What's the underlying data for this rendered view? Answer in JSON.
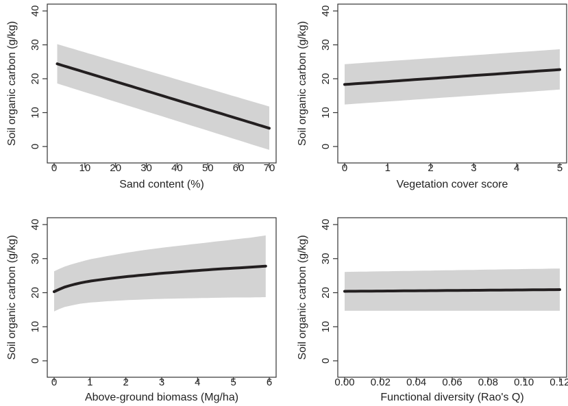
{
  "colors": {
    "band": "#d3d3d3",
    "line": "#231f20",
    "axis": "#333333"
  },
  "chart_data": [
    {
      "type": "line",
      "xlabel": "Sand content (%)",
      "ylabel": "Soil organic carbon (g/kg)",
      "xlim": [
        0,
        70
      ],
      "ylim": [
        0,
        40
      ],
      "xticks": [
        "0",
        "10",
        "20",
        "30",
        "40",
        "50",
        "60",
        "70"
      ],
      "yticks": [
        "0",
        "10",
        "20",
        "30",
        "40"
      ],
      "series": [
        {
          "x": [
            1,
            70
          ],
          "y": [
            24.4,
            5.4
          ],
          "lower": [
            18.6,
            -1.0
          ],
          "upper": [
            30.2,
            11.8
          ]
        }
      ]
    },
    {
      "type": "line",
      "xlabel": "Vegetation cover score",
      "ylabel": "Soil organic carbon (g/kg)",
      "xlim": [
        0,
        5
      ],
      "ylim": [
        0,
        40
      ],
      "xticks": [
        "0",
        "1",
        "2",
        "3",
        "4",
        "5"
      ],
      "yticks": [
        "0",
        "10",
        "20",
        "30",
        "40"
      ],
      "series": [
        {
          "x": [
            0,
            5
          ],
          "y": [
            18.3,
            22.7
          ],
          "lower": [
            12.4,
            16.8
          ],
          "upper": [
            24.3,
            28.7
          ]
        }
      ]
    },
    {
      "type": "line",
      "xlabel": "Above-ground biomass (Mg/ha)",
      "ylabel": "Soil organic carbon (g/kg)",
      "xlim": [
        0,
        6
      ],
      "ylim": [
        0,
        40
      ],
      "xticks": [
        "0",
        "1",
        "2",
        "3",
        "4",
        "5",
        "6"
      ],
      "yticks": [
        "0",
        "10",
        "20",
        "30",
        "40"
      ],
      "series": [
        {
          "x": [
            0,
            0.25,
            0.5,
            0.75,
            1,
            1.5,
            2,
            2.5,
            3,
            3.5,
            4,
            4.5,
            5,
            5.5,
            5.9
          ],
          "y": [
            20.3,
            21.5,
            22.3,
            22.9,
            23.4,
            24.1,
            24.7,
            25.2,
            25.7,
            26.1,
            26.5,
            26.9,
            27.2,
            27.5,
            27.8
          ],
          "lower": [
            14.5,
            15.7,
            16.3,
            16.8,
            17.1,
            17.5,
            17.8,
            18.0,
            18.2,
            18.3,
            18.4,
            18.5,
            18.6,
            18.6,
            18.7
          ],
          "upper": [
            26.3,
            27.5,
            28.4,
            29.1,
            29.8,
            30.8,
            31.7,
            32.5,
            33.2,
            33.8,
            34.4,
            35.0,
            35.6,
            36.2,
            36.8
          ]
        }
      ]
    },
    {
      "type": "line",
      "xlabel": "Functional diversity (Rao's Q)",
      "ylabel": "Soil organic carbon (g/kg)",
      "xlim": [
        0,
        0.12
      ],
      "ylim": [
        0,
        40
      ],
      "xticks": [
        "0.00",
        "0.02",
        "0.04",
        "0.06",
        "0.08",
        "0.10",
        "0.12"
      ],
      "yticks": [
        "0",
        "10",
        "20",
        "30",
        "40"
      ],
      "series": [
        {
          "x": [
            0,
            0.12
          ],
          "y": [
            20.4,
            20.9
          ],
          "lower": [
            14.7,
            14.7
          ],
          "upper": [
            26.1,
            27.1
          ]
        }
      ]
    }
  ]
}
